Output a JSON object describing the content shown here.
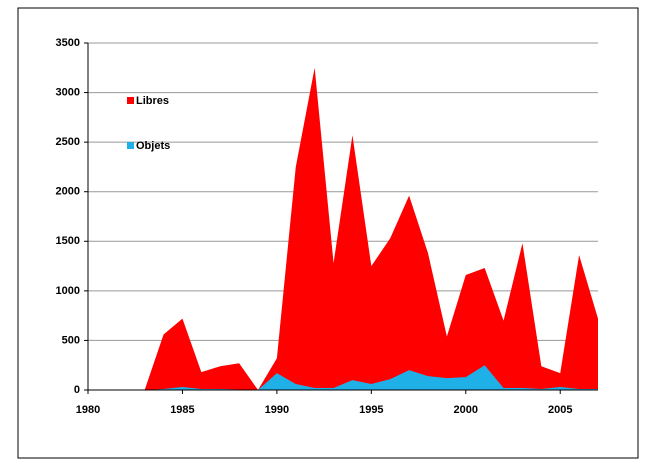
{
  "chart_data": {
    "type": "area",
    "x": [
      1983,
      1984,
      1985,
      1986,
      1987,
      1988,
      1989,
      1990,
      1991,
      1992,
      1993,
      1994,
      1995,
      1996,
      1997,
      1998,
      1999,
      2000,
      2001,
      2002,
      2003,
      2004,
      2005,
      2006,
      2007
    ],
    "series": [
      {
        "name": "Libres",
        "color": "#ff0000",
        "values": [
          0,
          560,
          720,
          180,
          240,
          270,
          0,
          320,
          2250,
          3250,
          1280,
          2570,
          1250,
          1530,
          1960,
          1380,
          540,
          1160,
          1230,
          700,
          1480,
          240,
          170,
          1360,
          720
        ]
      },
      {
        "name": "Objets",
        "color": "#1fb0e8",
        "values": [
          0,
          10,
          30,
          10,
          10,
          5,
          0,
          170,
          60,
          20,
          20,
          100,
          60,
          110,
          200,
          140,
          120,
          130,
          250,
          20,
          20,
          10,
          30,
          10,
          10
        ]
      }
    ],
    "xlim": [
      1980,
      2007
    ],
    "xticks": [
      1980,
      1985,
      1990,
      1995,
      2000,
      2005
    ],
    "ylim": [
      0,
      3500
    ],
    "yticks": [
      0,
      500,
      1000,
      1500,
      2000,
      2500,
      3000,
      3500
    ],
    "grid": true,
    "legend": "upper left"
  }
}
